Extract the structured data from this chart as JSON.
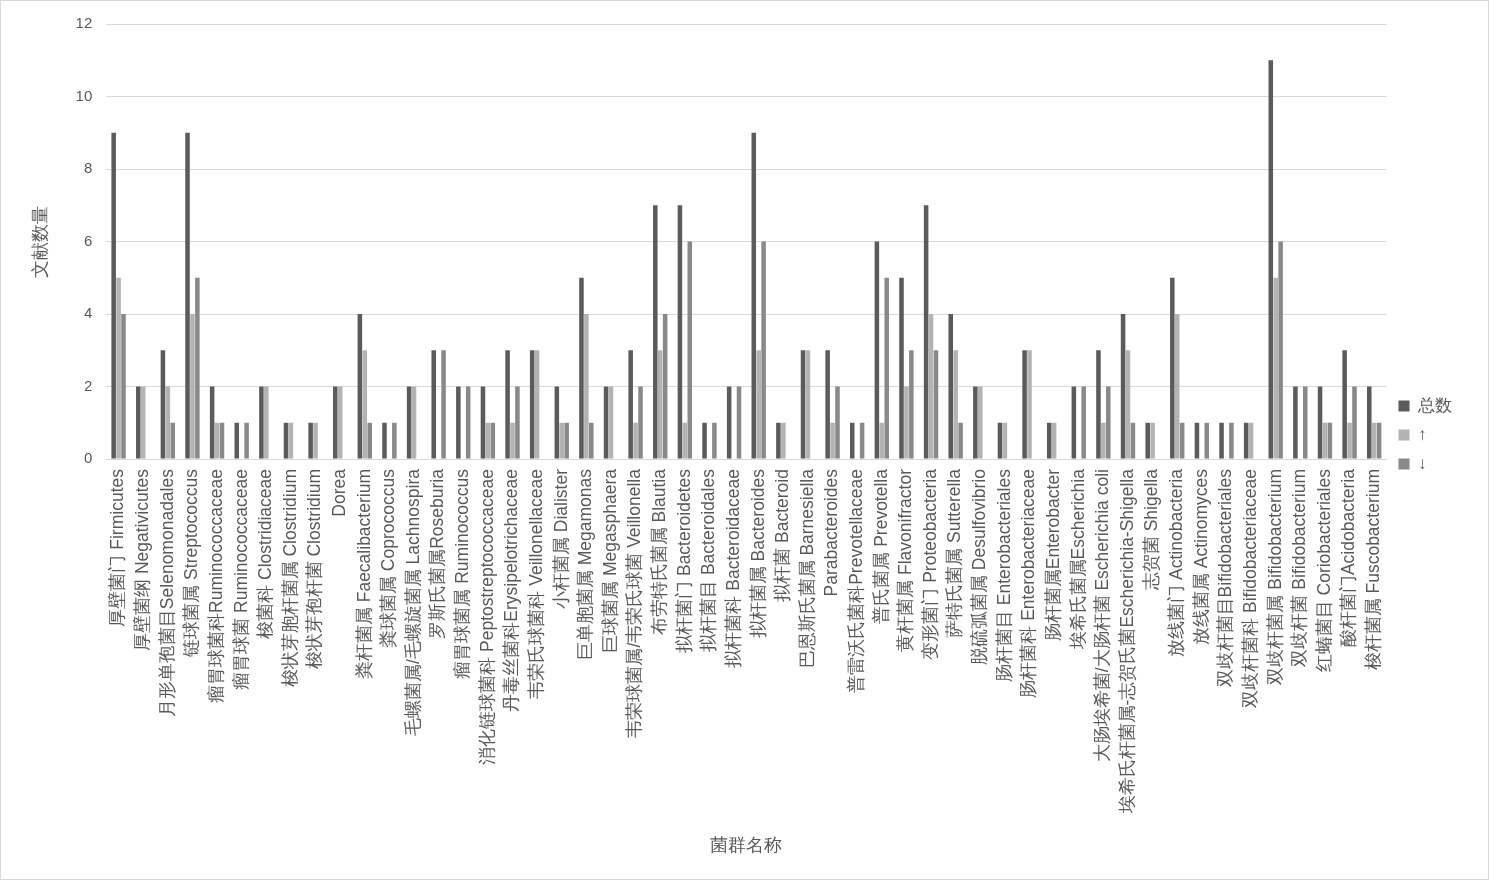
{
  "chart_data": {
    "type": "bar",
    "xlabel": "菌群名称",
    "ylabel": "文献数量",
    "categories": [
      "厚壁菌门 Firmicutes",
      "厚壁菌纲 Negativicutes",
      "月形单孢菌目Selenomonadales",
      "链球菌属 Streptococcus",
      "瘤胃球菌科Ruminococcaceae",
      "瘤胃球菌 Ruminococcaceae",
      "梭菌科 Clostridiaceae",
      "梭状芽胞杆菌属 Clostridium",
      "梭状芽孢杆菌 Clostridium",
      "Dorea",
      "粪杆菌属 Faecalibacterium",
      "粪球菌属 Coprococcus",
      "毛螺菌属/毛螺旋菌属 Lachnospira",
      "罗斯氏菌属Roseburia",
      "瘤胃球菌属 Ruminococcus",
      "消化链球菌科 Peptostreptococcaceae",
      "丹毒丝菌科Erysipelotrichaceae",
      "韦荣氏球菌科 Veillonellaceae",
      "小杆菌属 Dialister",
      "巨单胞菌属 Megamonas",
      "巨球菌属 Megasphaera",
      "韦荣球菌属/韦荣氏球菌 Veillonella",
      "布劳特氏菌属 Blautia",
      "拟杆菌门 Bacteroidetes",
      "拟杆菌目 Bacteroidales",
      "拟杆菌科 Bacteroidaceae",
      "拟杆菌属 Bacteroides",
      "拟杆菌 Bacteroid",
      "巴恩斯氏菌属 Barnesiella",
      "Parabacteroides",
      "普雷沃氏菌科Prevotellaceae",
      "普氏菌属 Prevotella",
      "黄杆菌属 Flavonifractor",
      "变形菌门 Proteobacteria",
      "萨特氏菌属 Sutterella",
      "脱硫弧菌属 Desulfovibrio",
      "肠杆菌目 Enterobacteriales",
      "肠杆菌科 Enterobacteriaceae",
      "肠杆菌属Enterobacter",
      "埃希氏菌属Escherichia",
      "大肠埃希菌/大肠杆菌 Escherichia coli",
      "埃希氏杆菌属-志贺氏菌Escherichia-Shigella",
      "志贺菌 Shigella",
      "放线菌门 Actinobacteria",
      "放线菌属 Actinomyces",
      "双歧杆菌目Bifidobacteriales",
      "双歧杆菌科 Bifidobacteriaceae",
      "双歧杆菌属 Bifidobacterium",
      "双歧杆菌 Bifidobacterium",
      "红蝽菌目 Coriobacteriales",
      "酸杆菌门Acidobacteria",
      "梭杆菌属 Fuscobacterium"
    ],
    "series": [
      {
        "name": "总数",
        "color": "#5b5b5b",
        "values": [
          9,
          2,
          3,
          9,
          2,
          1,
          2,
          1,
          1,
          2,
          4,
          1,
          2,
          3,
          2,
          2,
          3,
          3,
          2,
          5,
          2,
          3,
          7,
          7,
          1,
          2,
          9,
          1,
          3,
          3,
          1,
          6,
          5,
          7,
          4,
          2,
          1,
          3,
          1,
          2,
          3,
          4,
          1,
          5,
          1,
          1,
          1,
          11,
          2,
          2,
          3,
          2
        ]
      },
      {
        "name": "↑",
        "color": "#b3b3b3",
        "values": [
          5,
          2,
          2,
          4,
          1,
          null,
          2,
          1,
          1,
          2,
          3,
          null,
          2,
          null,
          null,
          1,
          1,
          3,
          1,
          4,
          2,
          1,
          3,
          1,
          null,
          null,
          3,
          1,
          3,
          1,
          null,
          1,
          2,
          4,
          3,
          2,
          1,
          3,
          1,
          null,
          1,
          3,
          1,
          4,
          null,
          null,
          1,
          5,
          null,
          1,
          1,
          1
        ]
      },
      {
        "name": "↓",
        "color": "#898989",
        "values": [
          4,
          null,
          1,
          5,
          1,
          1,
          null,
          null,
          null,
          null,
          1,
          1,
          null,
          3,
          2,
          1,
          2,
          null,
          1,
          1,
          null,
          2,
          4,
          6,
          1,
          2,
          6,
          null,
          null,
          2,
          1,
          5,
          3,
          3,
          1,
          null,
          null,
          null,
          null,
          2,
          2,
          1,
          null,
          1,
          1,
          1,
          null,
          6,
          2,
          1,
          2,
          1
        ]
      }
    ],
    "ylim": [
      0,
      12
    ],
    "yticks": [
      0,
      2,
      4,
      6,
      8,
      10,
      12
    ],
    "grid": "y",
    "legend": "right"
  }
}
